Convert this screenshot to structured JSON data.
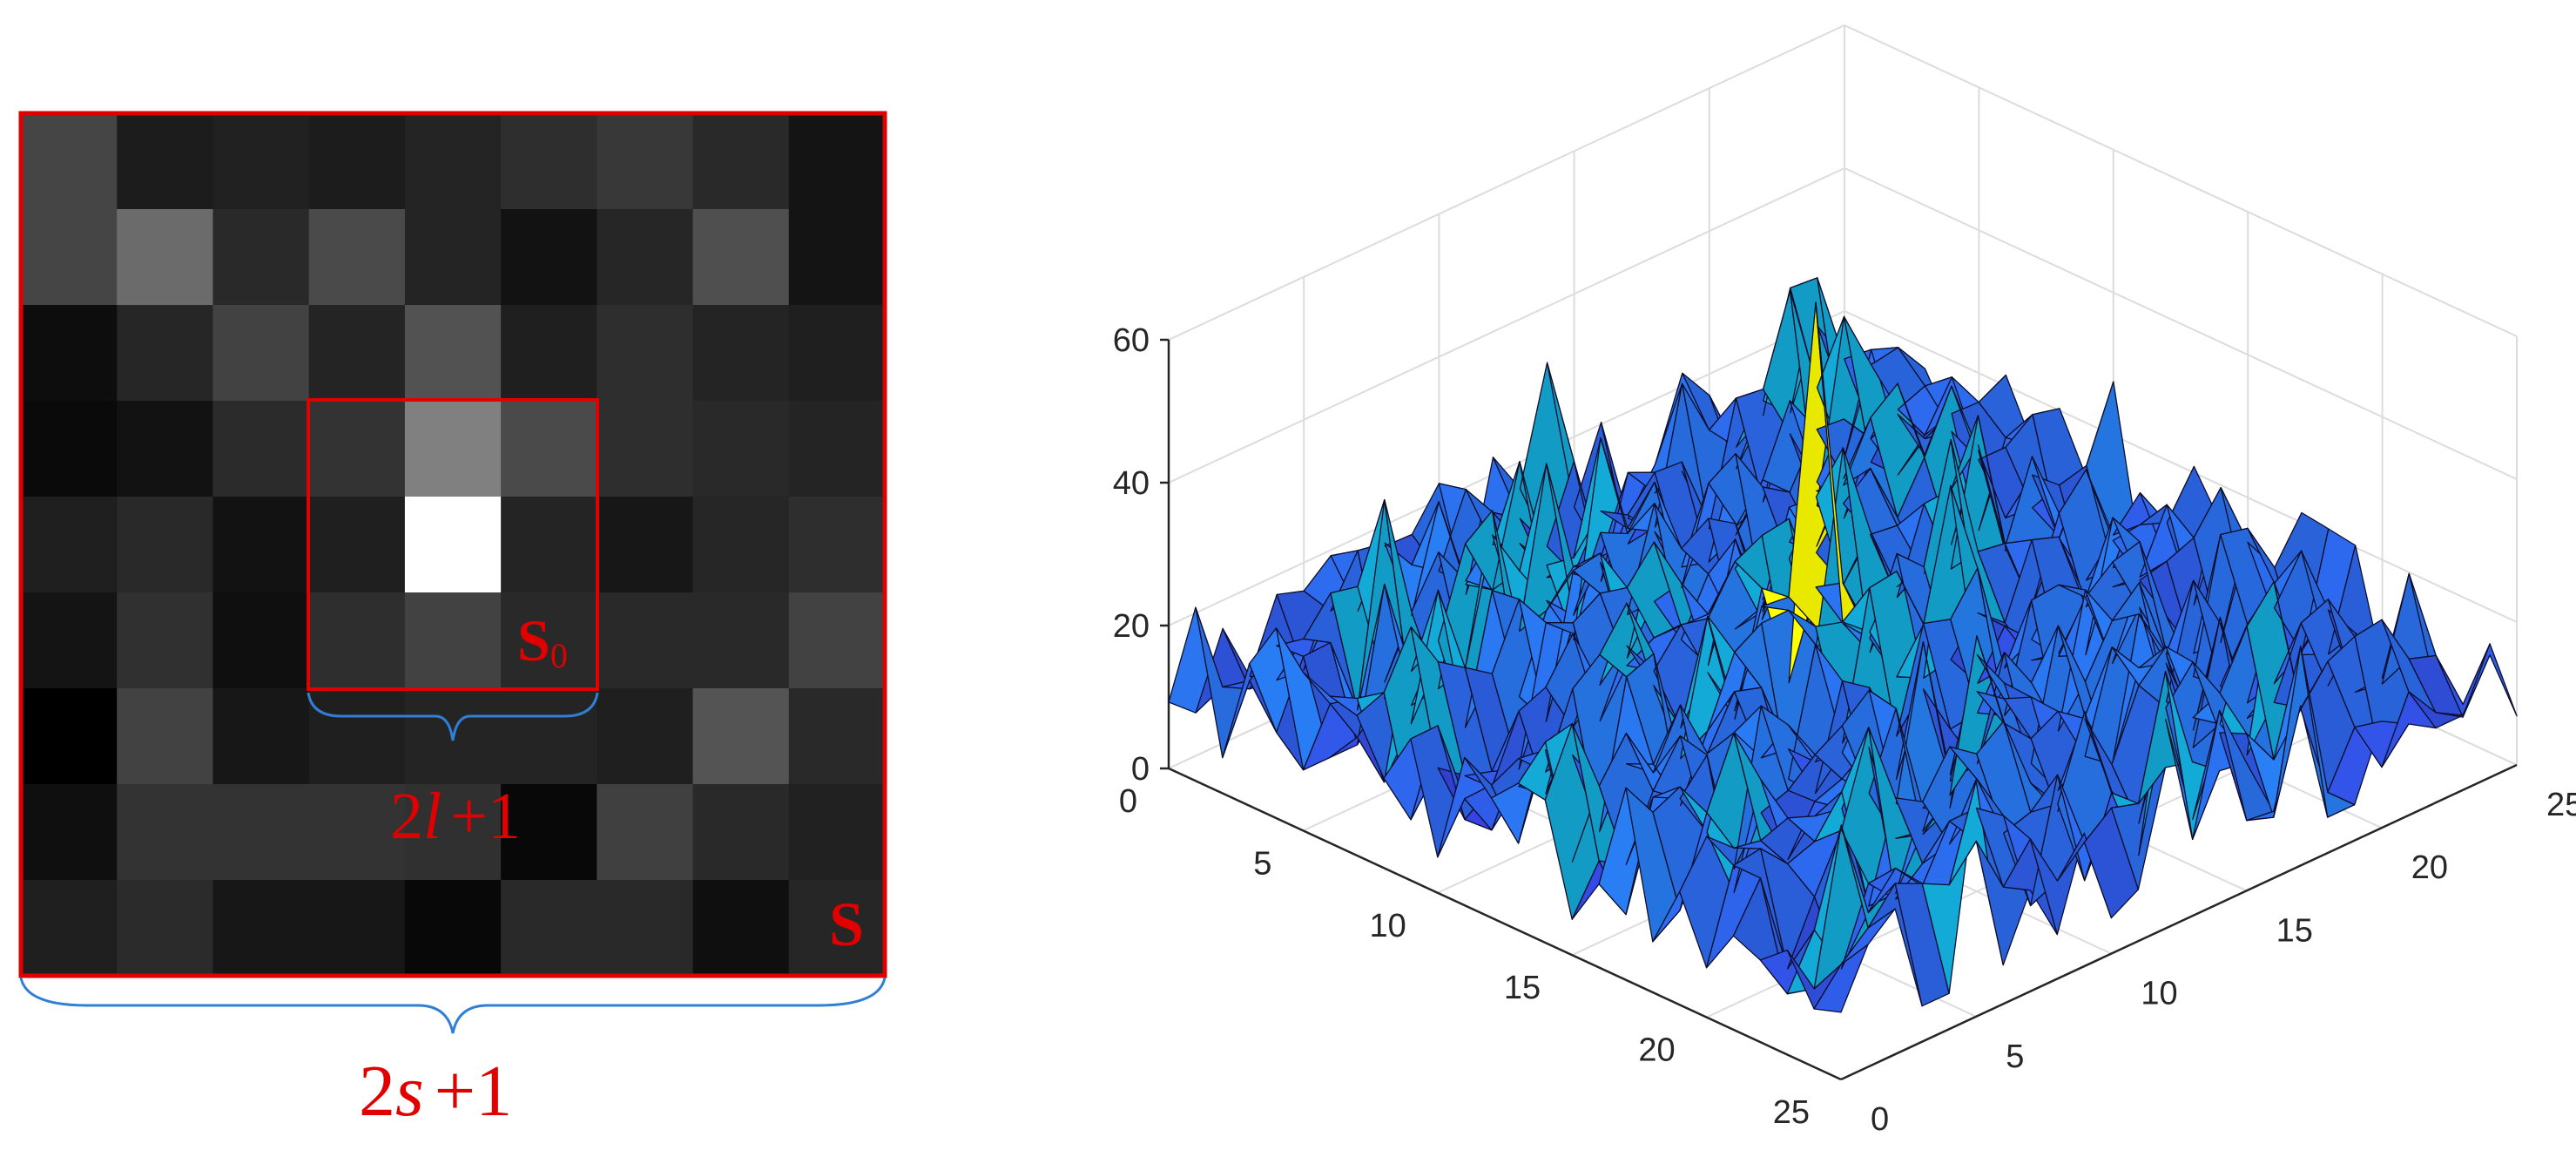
{
  "left_panel": {
    "pixel_intensities": [
      [
        0.27,
        0.11,
        0.13,
        0.11,
        0.14,
        0.18,
        0.22,
        0.16,
        0.08
      ],
      [
        0.27,
        0.42,
        0.16,
        0.29,
        0.14,
        0.07,
        0.15,
        0.31,
        0.08
      ],
      [
        0.05,
        0.15,
        0.26,
        0.14,
        0.32,
        0.12,
        0.18,
        0.14,
        0.12
      ],
      [
        0.04,
        0.07,
        0.17,
        0.2,
        0.5,
        0.29,
        0.18,
        0.16,
        0.14
      ],
      [
        0.12,
        0.16,
        0.07,
        0.12,
        1.0,
        0.14,
        0.09,
        0.15,
        0.18
      ],
      [
        0.08,
        0.19,
        0.06,
        0.18,
        0.26,
        0.16,
        0.16,
        0.16,
        0.26
      ],
      [
        0.0,
        0.26,
        0.09,
        0.12,
        0.14,
        0.14,
        0.12,
        0.33,
        0.16
      ],
      [
        0.06,
        0.2,
        0.2,
        0.2,
        0.19,
        0.03,
        0.25,
        0.16,
        0.13
      ],
      [
        0.12,
        0.17,
        0.09,
        0.09,
        0.03,
        0.16,
        0.16,
        0.06,
        0.15
      ]
    ],
    "inner_window_label_main": "S",
    "inner_window_label_sub": "0",
    "outer_window_label": "S",
    "inner_brace_label": {
      "a": "2",
      "var": "l",
      "b": "+1"
    },
    "outer_brace_label": {
      "a": "2",
      "var": "s",
      "b": "+1"
    },
    "colors": {
      "window": "#e00000",
      "brace": "#2f7fd6",
      "label": "#e00000"
    }
  },
  "right_panel": {
    "z_ticks": [
      "60",
      "40",
      "20",
      "0"
    ],
    "left_axis_ticks": [
      "0",
      "5",
      "10",
      "15",
      "20",
      "25"
    ],
    "right_axis_ticks": [
      "0",
      "5",
      "10",
      "15",
      "20",
      "25"
    ],
    "colors": {
      "surface_low": "#3f3fe8",
      "surface_mid": "#2a9fe0",
      "surface_high": "#ffff00",
      "grid": "#dcdcdc",
      "axis": "#262626"
    }
  },
  "chart_data": {
    "type": "surface",
    "grid_size": [
      25,
      25
    ],
    "zlim": [
      0,
      60
    ],
    "xlim": [
      0,
      25
    ],
    "ylim": [
      0,
      25
    ],
    "peak": {
      "x": 12,
      "y": 12,
      "z": 65
    },
    "background_level": [
      5,
      28
    ],
    "grid": true
  }
}
